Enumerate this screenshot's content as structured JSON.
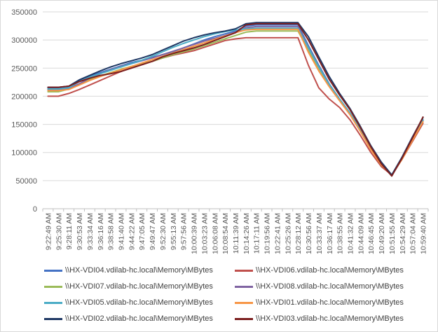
{
  "chart_data": {
    "type": "line",
    "title": "",
    "xlabel": "",
    "ylabel": "",
    "ylim": [
      0,
      350000
    ],
    "yticks": [
      0,
      50000,
      100000,
      150000,
      200000,
      250000,
      300000,
      350000
    ],
    "ytick_labels": [
      "0",
      "50000",
      "100000",
      "150000",
      "200000",
      "250000",
      "300000",
      "350000"
    ],
    "x": [
      "9:22:49 AM",
      "9:25:30 AM",
      "9:28:11 AM",
      "9:30:53 AM",
      "9:33:34 AM",
      "9:36:16 AM",
      "9:38:58 AM",
      "9:41:40 AM",
      "9:44:22 AM",
      "9:47:05 AM",
      "9:49:47 AM",
      "9:52:30 AM",
      "9:55:13 AM",
      "9:57:56 AM",
      "10:00:39 AM",
      "10:03:23 AM",
      "10:06:08 AM",
      "10:08:54 AM",
      "10:11:39 AM",
      "10:14:26 AM",
      "10:17:11 AM",
      "10:19:56 AM",
      "10:22:41 AM",
      "10:25:26 AM",
      "10:28:12 AM",
      "10:30:56 AM",
      "10:33:37 AM",
      "10:36:17 AM",
      "10:38:55 AM",
      "10:41:32 AM",
      "10:44:09 AM",
      "10:46:45 AM",
      "10:49:20 AM",
      "10:51:55 AM",
      "10:54:29 AM",
      "10:57:04 AM",
      "10:59:40 AM"
    ],
    "grid": true,
    "legend_position": "bottom",
    "series": [
      {
        "name": "\\\\HX-VDI04.vdilab-hc.local\\Memory\\MBytes",
        "color": "#4472c4",
        "values": [
          215000,
          215000,
          217000,
          228000,
          236000,
          242000,
          248000,
          254000,
          260000,
          264000,
          269000,
          274000,
          279000,
          286000,
          293000,
          300000,
          306000,
          311000,
          316000,
          325000,
          327000,
          327000,
          327000,
          327000,
          327000,
          290000,
          255000,
          222000,
          195000,
          170000,
          140000,
          108000,
          80000,
          60000,
          90000,
          125000,
          158000
        ]
      },
      {
        "name": "\\\\HX-VDI06.vdilab-hc.local\\Memory\\MBytes",
        "color": "#c0504d",
        "values": [
          200000,
          200000,
          205000,
          212000,
          220000,
          228000,
          236000,
          244000,
          251000,
          257000,
          262000,
          268000,
          273000,
          277000,
          281000,
          287000,
          293000,
          299000,
          302000,
          304000,
          304000,
          304000,
          304000,
          304000,
          304000,
          255000,
          215000,
          195000,
          180000,
          158000,
          130000,
          100000,
          75000,
          60000,
          88000,
          120000,
          152000
        ]
      },
      {
        "name": "\\\\HX-VDI07.vdilab-hc.local\\Memory\\MBytes",
        "color": "#9bbb59",
        "values": [
          208000,
          208000,
          213000,
          222000,
          230000,
          236000,
          242000,
          248000,
          253000,
          258000,
          262000,
          268000,
          274000,
          279000,
          284000,
          290000,
          296000,
          302000,
          308000,
          314000,
          316000,
          316000,
          316000,
          316000,
          316000,
          282000,
          250000,
          220000,
          193000,
          168000,
          138000,
          106000,
          78000,
          60000,
          89000,
          123000,
          156000
        ]
      },
      {
        "name": "\\\\HX-VDI08.vdilab-hc.local\\Memory\\MBytes",
        "color": "#8064a2",
        "values": [
          212000,
          212000,
          214000,
          222000,
          232000,
          240000,
          247000,
          253000,
          258000,
          263000,
          268000,
          274000,
          280000,
          286000,
          292000,
          298000,
          303000,
          308000,
          314000,
          322000,
          324000,
          324000,
          324000,
          324000,
          324000,
          287000,
          253000,
          221000,
          194000,
          169000,
          139000,
          107000,
          79000,
          60000,
          89000,
          124000,
          157000
        ]
      },
      {
        "name": "\\\\HX-VDI05.vdilab-hc.local\\Memory\\MBytes",
        "color": "#4bacc6",
        "values": [
          213000,
          213000,
          215000,
          226000,
          234000,
          240000,
          246000,
          252000,
          258000,
          264000,
          271000,
          279000,
          287000,
          294000,
          300000,
          306000,
          311000,
          315000,
          318000,
          320000,
          321000,
          321000,
          321000,
          321000,
          321000,
          286000,
          252000,
          221000,
          195000,
          170000,
          140000,
          108000,
          80000,
          60000,
          90000,
          125000,
          158000
        ]
      },
      {
        "name": "\\\\HX-VDI01.vdilab-hc.local\\Memory\\MBytes",
        "color": "#f79646",
        "values": [
          210000,
          210000,
          212000,
          220000,
          228000,
          235000,
          241000,
          247000,
          253000,
          259000,
          265000,
          271000,
          277000,
          283000,
          289000,
          295000,
          301000,
          307000,
          313000,
          318000,
          319000,
          319000,
          319000,
          319000,
          319000,
          278000,
          245000,
          217000,
          192000,
          167000,
          137000,
          105000,
          78000,
          60000,
          88000,
          122000,
          155000
        ]
      },
      {
        "name": "\\\\HX-VDI02.vdilab-hc.local\\Memory\\MBytes",
        "color": "#1f3864",
        "values": [
          216000,
          216000,
          218000,
          229000,
          237000,
          245000,
          252000,
          258000,
          263000,
          268000,
          274000,
          282000,
          290000,
          298000,
          304000,
          309000,
          313000,
          316000,
          320000,
          329000,
          331000,
          331000,
          331000,
          331000,
          331000,
          306000,
          270000,
          235000,
          205000,
          178000,
          146000,
          112000,
          83000,
          60000,
          92000,
          128000,
          162000
        ]
      },
      {
        "name": "\\\\HX-VDI03.vdilab-hc.local\\Memory\\MBytes",
        "color": "#7b1f1f",
        "values": [
          216000,
          216000,
          218000,
          226000,
          232000,
          237000,
          240000,
          244000,
          250000,
          256000,
          262000,
          270000,
          276000,
          281000,
          286000,
          292000,
          299000,
          306000,
          313000,
          327000,
          329000,
          329000,
          329000,
          329000,
          329000,
          300000,
          265000,
          230000,
          202000,
          176000,
          144000,
          110000,
          80000,
          58000,
          90000,
          126000,
          163000
        ]
      }
    ]
  }
}
